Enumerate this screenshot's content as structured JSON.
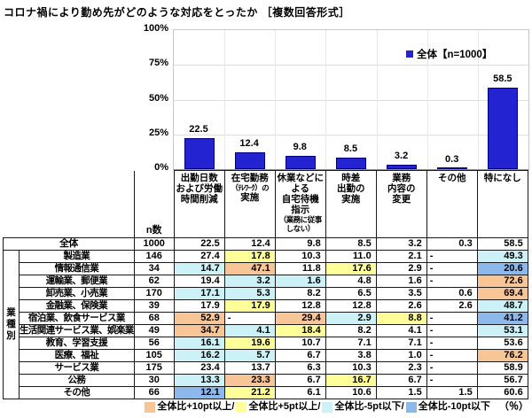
{
  "title": "コロナ禍により勤め先がどのような対応をとったか ［複数回答形式］",
  "chart_data": {
    "type": "bar",
    "title": "コロナ禍により勤め先がどのような対応をとったか ［複数回答形式］",
    "legend": "全体【n=1000】",
    "legend_position": "top-right",
    "categories": [
      "出勤日数および労働時間削減",
      "在宅勤務（ﾃﾚﾜｰｸ）の実施",
      "休業などによる自宅待機指示（業務に従事しない）",
      "時差出勤の実施",
      "業務内容の変更",
      "その他",
      "特になし"
    ],
    "values": [
      22.5,
      12.4,
      9.8,
      8.5,
      3.2,
      0.3,
      58.5
    ],
    "xlabel": "",
    "ylabel": "",
    "ylim": [
      0,
      100
    ],
    "ytick_labels": [
      "0%",
      "25%",
      "50%",
      "75%",
      "100%"
    ],
    "grid": true,
    "bar_color": "#2323d2",
    "bar_border_color": "#00007f"
  },
  "highlight_colors": {
    "p10": "#f8c696",
    "p5": "#ffff99",
    "m5": "#ccf2f8",
    "m10": "#8cb8ec"
  },
  "table": {
    "n_header": "n数",
    "group_label": "業種別",
    "header_columns": [
      {
        "lines": [
          {
            "t": "出勤日数"
          },
          {
            "t": "および労働"
          },
          {
            "t": "時間削減"
          }
        ]
      },
      {
        "lines": [
          {
            "t": "在宅勤務"
          },
          {
            "t": "（ﾃﾚﾜｰｸ）の",
            "s": true
          },
          {
            "t": "実施"
          }
        ]
      },
      {
        "lines": [
          {
            "t": "休業などに"
          },
          {
            "t": "よる"
          },
          {
            "t": "自宅待機"
          },
          {
            "t": "指示"
          },
          {
            "t": "（業務に従事",
            "s": true
          },
          {
            "t": "しない）",
            "s": true
          }
        ]
      },
      {
        "lines": [
          {
            "t": "時差"
          },
          {
            "t": "出勤の"
          },
          {
            "t": "実施"
          }
        ]
      },
      {
        "lines": [
          {
            "t": "業務"
          },
          {
            "t": "内容の"
          },
          {
            "t": "変更"
          }
        ]
      },
      {
        "lines": [
          {
            "t": "その他"
          }
        ]
      },
      {
        "lines": [
          {
            "t": "特になし"
          }
        ]
      }
    ],
    "rows": [
      {
        "label": "全体",
        "n": "1000",
        "values": [
          "22.5",
          "12.4",
          "9.8",
          "8.5",
          "3.2",
          "0.3",
          "58.5"
        ],
        "colors": [
          "",
          "",
          "",
          "",
          "",
          "",
          ""
        ]
      },
      {
        "label": "製造業",
        "n": "146",
        "values": [
          "27.4",
          "17.8",
          "10.3",
          "11.0",
          "2.1",
          "-",
          "49.3"
        ],
        "colors": [
          "",
          "p5",
          "",
          "",
          "",
          "",
          "m5"
        ]
      },
      {
        "label": "情報通信業",
        "n": "34",
        "values": [
          "14.7",
          "47.1",
          "11.8",
          "17.6",
          "2.9",
          "-",
          "20.6"
        ],
        "colors": [
          "m5",
          "p10",
          "",
          "p5",
          "",
          "",
          "m10"
        ]
      },
      {
        "label": "運輸業、郵便業",
        "n": "62",
        "values": [
          "19.4",
          "3.2",
          "1.6",
          "4.8",
          "1.6",
          "-",
          "72.6"
        ],
        "colors": [
          "",
          "m5",
          "m5",
          "",
          "",
          "",
          "p10"
        ]
      },
      {
        "label": "卸売業、小売業",
        "n": "170",
        "values": [
          "17.1",
          "5.3",
          "8.2",
          "6.5",
          "3.5",
          "0.6",
          "69.4"
        ],
        "colors": [
          "m5",
          "m5",
          "",
          "",
          "",
          "",
          "p10"
        ]
      },
      {
        "label": "金融業、保険業",
        "n": "39",
        "values": [
          "17.9",
          "17.9",
          "12.8",
          "12.8",
          "2.6",
          "2.6",
          "48.7"
        ],
        "colors": [
          "",
          "p5",
          "",
          "",
          "",
          "",
          "m5"
        ]
      },
      {
        "label": "宿泊業、飲食サービス業",
        "n": "68",
        "values": [
          "52.9",
          "-",
          "29.4",
          "2.9",
          "8.8",
          "-",
          "41.2"
        ],
        "colors": [
          "p10",
          "",
          "p10",
          "m5",
          "p5",
          "",
          "m10"
        ]
      },
      {
        "label": "生活関連サービス業、娯楽業",
        "n": "49",
        "values": [
          "34.7",
          "4.1",
          "18.4",
          "8.2",
          "4.1",
          "-",
          "53.1"
        ],
        "colors": [
          "p10",
          "m5",
          "p5",
          "",
          "",
          "",
          "m5"
        ]
      },
      {
        "label": "教育、学習支援",
        "n": "56",
        "values": [
          "16.1",
          "19.6",
          "10.7",
          "7.1",
          "7.1",
          "-",
          "53.6"
        ],
        "colors": [
          "m5",
          "p5",
          "",
          "",
          "",
          "",
          ""
        ]
      },
      {
        "label": "医療、福祉",
        "n": "105",
        "values": [
          "16.2",
          "5.7",
          "6.7",
          "3.8",
          "1.0",
          "-",
          "76.2"
        ],
        "colors": [
          "m5",
          "m5",
          "",
          "",
          "",
          "",
          "p10"
        ]
      },
      {
        "label": "サービス業",
        "n": "175",
        "values": [
          "23.4",
          "13.7",
          "6.3",
          "10.3",
          "2.3",
          "-",
          "58.9"
        ],
        "colors": [
          "",
          "",
          "",
          "",
          "",
          "",
          ""
        ]
      },
      {
        "label": "公務",
        "n": "30",
        "values": [
          "13.3",
          "23.3",
          "6.7",
          "16.7",
          "6.7",
          "-",
          "56.7"
        ],
        "colors": [
          "m5",
          "p10",
          "",
          "p5",
          "",
          "",
          ""
        ]
      },
      {
        "label": "その他",
        "n": "66",
        "values": [
          "12.1",
          "21.2",
          "6.1",
          "10.6",
          "1.5",
          "1.5",
          "60.6"
        ],
        "colors": [
          "m10",
          "p5",
          "",
          "",
          "",
          "",
          ""
        ]
      }
    ]
  },
  "bottom_legend": {
    "items": [
      {
        "label": "全体比+10pt以上",
        "code": "p10"
      },
      {
        "label": "全体比+5pt以上",
        "code": "p5"
      },
      {
        "label": "全体比-5pt以下",
        "code": "m5"
      },
      {
        "label": "全体比-10pt以下",
        "code": "m10"
      }
    ],
    "separator": "/",
    "suffix": "（％）"
  }
}
